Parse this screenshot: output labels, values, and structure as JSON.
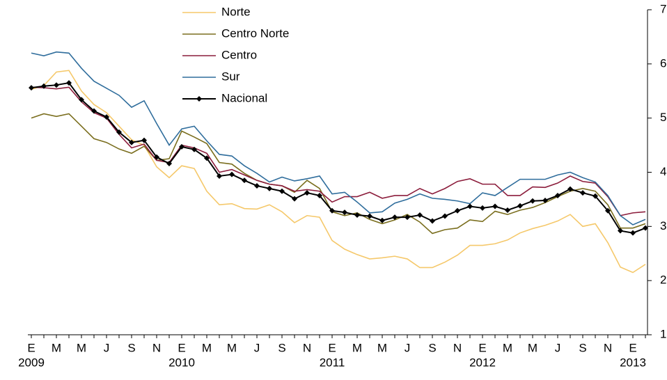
{
  "chart_data": {
    "type": "line",
    "categories": [
      "E",
      null,
      "M",
      null,
      "M",
      null,
      "J",
      null,
      "S",
      null,
      "N",
      null,
      "E",
      null,
      "M",
      null,
      "M",
      null,
      "J",
      null,
      "S",
      null,
      "N",
      null,
      "E",
      null,
      "M",
      null,
      "M",
      null,
      "J",
      null,
      "S",
      null,
      "N",
      null,
      "E",
      null,
      "M",
      null,
      "M",
      null,
      "J",
      null,
      "S",
      null,
      "N",
      null,
      "E",
      null
    ],
    "years": [
      "2009",
      "2010",
      "2011",
      "2012",
      "2013"
    ],
    "ylim": [
      1,
      7
    ],
    "yticks": [
      1,
      2,
      3,
      4,
      5,
      6,
      7
    ],
    "series": [
      {
        "name": "Norte",
        "color": "#f5c86a",
        "values": [
          5.53,
          5.6,
          5.85,
          5.88,
          5.5,
          5.25,
          5.1,
          4.85,
          4.6,
          4.5,
          4.1,
          3.9,
          4.12,
          4.07,
          3.65,
          3.4,
          3.42,
          3.33,
          3.32,
          3.4,
          3.27,
          3.07,
          3.2,
          3.17,
          2.74,
          2.58,
          2.48,
          2.4,
          2.42,
          2.45,
          2.4,
          2.24,
          2.24,
          2.34,
          2.47,
          2.65,
          2.65,
          2.68,
          2.75,
          2.88,
          2.96,
          3.02,
          3.1,
          3.22,
          3.0,
          3.05,
          2.7,
          2.25,
          2.15,
          2.3
        ]
      },
      {
        "name": "Centro Norte",
        "color": "#7a6e1e",
        "values": [
          5.0,
          5.08,
          5.03,
          5.08,
          4.85,
          4.62,
          4.55,
          4.43,
          4.35,
          4.48,
          4.22,
          4.25,
          4.76,
          4.65,
          4.53,
          4.18,
          4.15,
          3.98,
          3.85,
          3.78,
          3.75,
          3.63,
          3.85,
          3.7,
          3.27,
          3.2,
          3.25,
          3.13,
          3.05,
          3.12,
          3.22,
          3.08,
          2.87,
          2.94,
          2.97,
          3.12,
          3.09,
          3.28,
          3.22,
          3.3,
          3.35,
          3.44,
          3.55,
          3.65,
          3.7,
          3.65,
          3.4,
          2.97,
          2.97,
          3.05
        ]
      },
      {
        "name": "Centro",
        "color": "#8c1d3c",
        "values": [
          5.57,
          5.56,
          5.54,
          5.57,
          5.3,
          5.1,
          5.0,
          4.7,
          4.45,
          4.52,
          4.22,
          4.18,
          4.5,
          4.45,
          4.35,
          4.0,
          4.05,
          3.95,
          3.85,
          3.78,
          3.75,
          3.65,
          3.68,
          3.65,
          3.45,
          3.55,
          3.55,
          3.63,
          3.52,
          3.57,
          3.57,
          3.7,
          3.6,
          3.7,
          3.83,
          3.88,
          3.78,
          3.78,
          3.57,
          3.57,
          3.73,
          3.72,
          3.8,
          3.93,
          3.83,
          3.8,
          3.55,
          3.2,
          3.25,
          3.27
        ]
      },
      {
        "name": "Sur",
        "color": "#2f6d9c",
        "values": [
          6.2,
          6.15,
          6.22,
          6.2,
          5.92,
          5.68,
          5.55,
          5.42,
          5.2,
          5.32,
          4.9,
          4.5,
          4.8,
          4.85,
          4.58,
          4.33,
          4.3,
          4.12,
          3.98,
          3.82,
          3.91,
          3.84,
          3.88,
          3.93,
          3.6,
          3.63,
          3.45,
          3.25,
          3.27,
          3.43,
          3.5,
          3.6,
          3.52,
          3.5,
          3.47,
          3.42,
          3.62,
          3.57,
          3.72,
          3.87,
          3.87,
          3.87,
          3.95,
          4.0,
          3.9,
          3.82,
          3.57,
          3.2,
          3.03,
          3.13
        ]
      },
      {
        "name": "Nacional",
        "color": "#000000",
        "markers": true,
        "values": [
          5.56,
          5.59,
          5.61,
          5.65,
          5.34,
          5.13,
          5.02,
          4.74,
          4.55,
          4.59,
          4.28,
          4.16,
          4.47,
          4.42,
          4.26,
          3.93,
          3.96,
          3.85,
          3.75,
          3.7,
          3.65,
          3.51,
          3.62,
          3.57,
          3.29,
          3.26,
          3.21,
          3.19,
          3.11,
          3.17,
          3.17,
          3.21,
          3.1,
          3.19,
          3.29,
          3.37,
          3.34,
          3.37,
          3.3,
          3.38,
          3.47,
          3.48,
          3.57,
          3.69,
          3.62,
          3.56,
          3.29,
          2.92,
          2.88,
          2.97
        ]
      }
    ]
  }
}
